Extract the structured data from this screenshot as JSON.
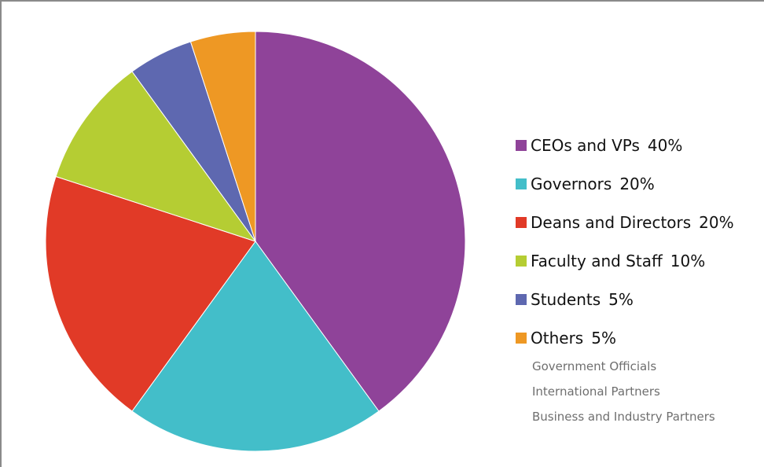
{
  "chart_data": {
    "type": "pie",
    "title": "",
    "slices": [
      {
        "label": "CEOs and VPs",
        "value_text": "40%",
        "value": 40,
        "color": "#8f4399"
      },
      {
        "label": "Governors",
        "value_text": "20%",
        "value": 20,
        "color": "#43bec9"
      },
      {
        "label": "Deans and Directors",
        "value_text": "20%",
        "value": 20,
        "color": "#e13a27"
      },
      {
        "label": "Faculty and Staff",
        "value_text": "10%",
        "value": 10,
        "color": "#b5cd33"
      },
      {
        "label": "Students",
        "value_text": "5%",
        "value": 5,
        "color": "#5e68b0"
      },
      {
        "label": "Others",
        "value_text": "5%",
        "value": 5,
        "color": "#ee9824"
      }
    ],
    "legend_placement": "right",
    "others_breakdown": [
      "Government Officials",
      "International Partners",
      "Business and Industry Partners"
    ]
  }
}
